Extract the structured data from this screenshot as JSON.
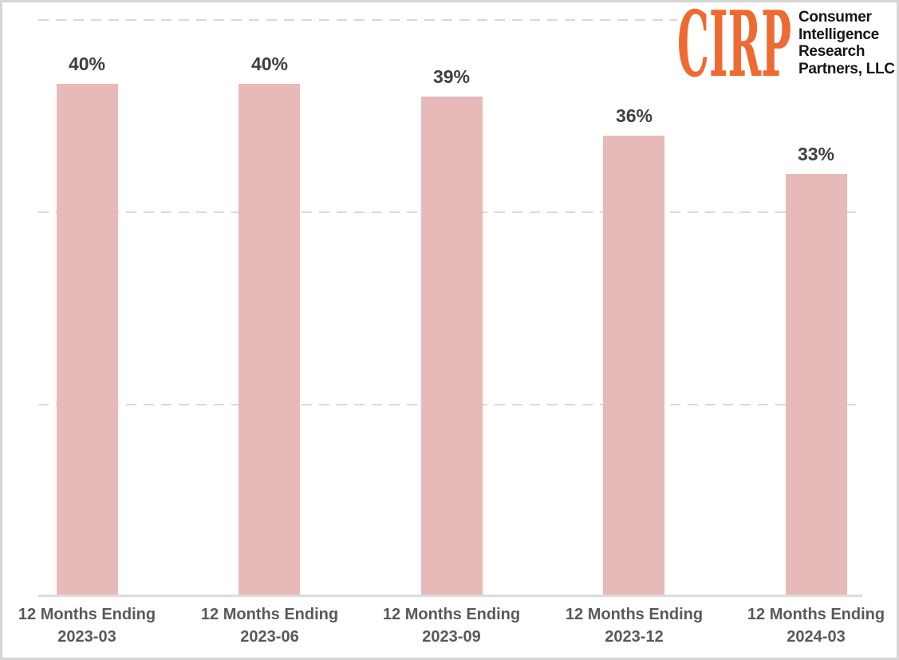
{
  "logo": {
    "brand": "CIRP",
    "brand_color": "#ee6a31",
    "company_lines": "Consumer\nIntelligence\nResearch\nPartners, LLC"
  },
  "chart_data": {
    "type": "bar",
    "categories": [
      "12 Months Ending\n2023-03",
      "12 Months Ending\n2023-06",
      "12 Months Ending\n2023-09",
      "12 Months Ending\n2023-12",
      "12 Months Ending\n2024-03"
    ],
    "values": [
      40,
      40,
      39,
      36,
      33
    ],
    "value_labels": [
      "40%",
      "40%",
      "39%",
      "36%",
      "33%"
    ],
    "title": "",
    "xlabel": "",
    "ylabel": "",
    "ylim": [
      0,
      45
    ],
    "gridlines_pct": [
      15,
      30,
      45
    ],
    "grid_style": "dashed",
    "grid_on": true,
    "legend": "none",
    "bar_color": "#e7b9b8",
    "value_label_color": "#3f3f3f",
    "axis_label_color": "#595959",
    "grid_color": "#d9d9d9"
  }
}
